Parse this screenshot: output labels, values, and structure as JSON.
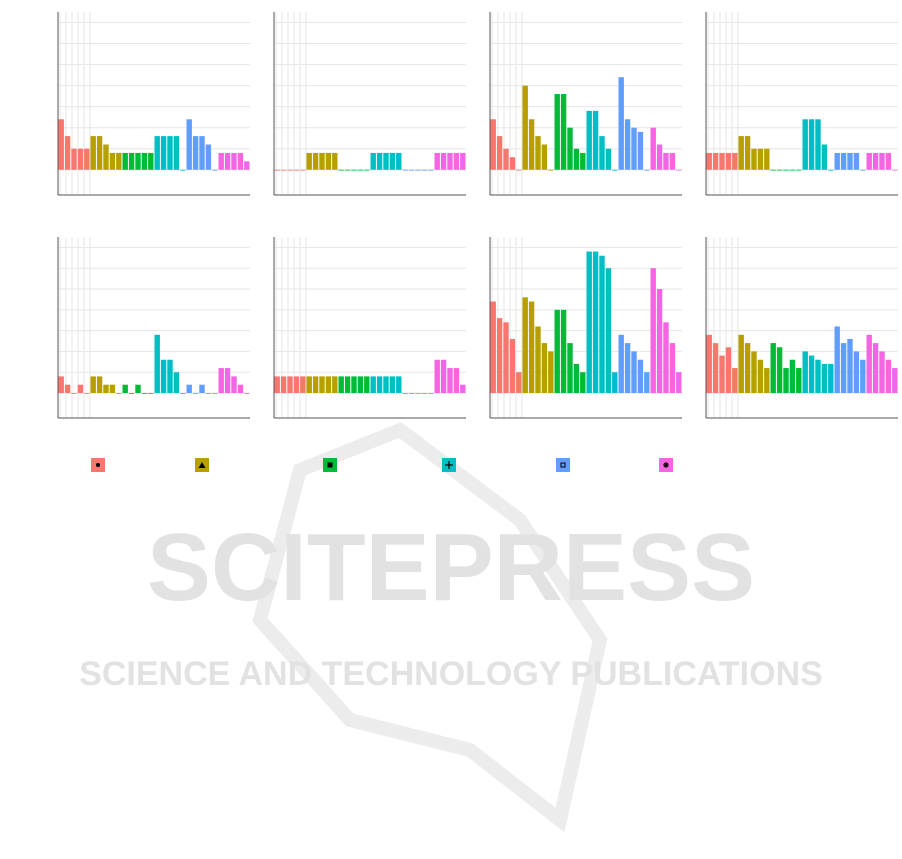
{
  "chart_data": [
    {
      "type": "bar",
      "ylim": [
        -1.2,
        7.5
      ],
      "yticks": [
        0,
        1,
        2,
        3,
        4,
        5,
        6,
        7
      ],
      "grid": true,
      "series": [
        {
          "color": "#f8766d",
          "values": [
            2.4,
            1.6,
            1,
            1,
            1
          ]
        },
        {
          "color": "#b79f00",
          "values": [
            1.6,
            1.6,
            1.2,
            0.8,
            0.8
          ]
        },
        {
          "color": "#00ba38",
          "values": [
            0.8,
            0.8,
            0.8,
            0.8,
            0.8
          ]
        },
        {
          "color": "#00bfc4",
          "values": [
            1.6,
            1.6,
            1.6,
            1.6,
            0
          ]
        },
        {
          "color": "#619cff",
          "values": [
            2.4,
            1.6,
            1.6,
            1.2,
            0
          ]
        },
        {
          "color": "#f564e3",
          "values": [
            0.8,
            0.8,
            0.8,
            0.8,
            0.4
          ]
        }
      ]
    },
    {
      "type": "bar",
      "ylim": [
        -1.2,
        7.5
      ],
      "yticks": [
        0,
        1,
        2,
        3,
        4,
        5,
        6,
        7
      ],
      "grid": true,
      "series": [
        {
          "color": "#f8766d",
          "values": [
            0,
            0,
            0,
            0,
            0
          ]
        },
        {
          "color": "#b79f00",
          "values": [
            0.8,
            0.8,
            0.8,
            0.8,
            0.8
          ]
        },
        {
          "color": "#00ba38",
          "values": [
            0,
            0,
            0,
            0,
            0
          ]
        },
        {
          "color": "#00bfc4",
          "values": [
            0.8,
            0.8,
            0.8,
            0.8,
            0.8
          ]
        },
        {
          "color": "#619cff",
          "values": [
            0,
            0,
            0,
            0,
            0
          ]
        },
        {
          "color": "#f564e3",
          "values": [
            0.8,
            0.8,
            0.8,
            0.8,
            0.8
          ]
        }
      ]
    },
    {
      "type": "bar",
      "ylim": [
        -1.2,
        7.5
      ],
      "yticks": [
        0,
        1,
        2,
        3,
        4,
        5,
        6,
        7
      ],
      "grid": true,
      "series": [
        {
          "color": "#f8766d",
          "values": [
            2.4,
            1.6,
            1,
            0.6,
            0
          ]
        },
        {
          "color": "#b79f00",
          "values": [
            4,
            2.4,
            1.6,
            1.2,
            0
          ]
        },
        {
          "color": "#00ba38",
          "values": [
            3.6,
            3.6,
            2,
            1,
            0.8
          ]
        },
        {
          "color": "#00bfc4",
          "values": [
            2.8,
            2.8,
            1.6,
            1,
            0
          ]
        },
        {
          "color": "#619cff",
          "values": [
            4.4,
            2.4,
            2,
            1.8,
            0
          ]
        },
        {
          "color": "#f564e3",
          "values": [
            2,
            1.2,
            0.8,
            0.8,
            0
          ]
        }
      ]
    },
    {
      "type": "bar",
      "ylim": [
        -1.2,
        7.5
      ],
      "yticks": [
        0,
        1,
        2,
        3,
        4,
        5,
        6,
        7
      ],
      "grid": true,
      "series": [
        {
          "color": "#f8766d",
          "values": [
            0.8,
            0.8,
            0.8,
            0.8,
            0.8
          ]
        },
        {
          "color": "#b79f00",
          "values": [
            1.6,
            1.6,
            1,
            1,
            1
          ]
        },
        {
          "color": "#00ba38",
          "values": [
            0,
            0,
            0,
            0,
            0
          ]
        },
        {
          "color": "#00bfc4",
          "values": [
            2.4,
            2.4,
            2.4,
            1.2,
            0
          ]
        },
        {
          "color": "#619cff",
          "values": [
            0.8,
            0.8,
            0.8,
            0.8,
            0
          ]
        },
        {
          "color": "#f564e3",
          "values": [
            0.8,
            0.8,
            0.8,
            0.8,
            0
          ]
        }
      ]
    },
    {
      "type": "bar",
      "ylim": [
        -1.2,
        7.5
      ],
      "yticks": [
        0,
        1,
        2,
        3,
        4,
        5,
        6,
        7
      ],
      "grid": true,
      "series": [
        {
          "color": "#f8766d",
          "values": [
            0.8,
            0.4,
            0,
            0.4,
            0
          ]
        },
        {
          "color": "#b79f00",
          "values": [
            0.8,
            0.8,
            0.4,
            0.4,
            0
          ]
        },
        {
          "color": "#00ba38",
          "values": [
            0.4,
            0,
            0.4,
            0,
            0
          ]
        },
        {
          "color": "#00bfc4",
          "values": [
            2.8,
            1.6,
            1.6,
            1,
            0
          ]
        },
        {
          "color": "#619cff",
          "values": [
            0.4,
            0,
            0.4,
            0,
            0
          ]
        },
        {
          "color": "#f564e3",
          "values": [
            1.2,
            1.2,
            0.8,
            0.4,
            0
          ]
        }
      ]
    },
    {
      "type": "bar",
      "ylim": [
        -1.2,
        7.5
      ],
      "yticks": [
        0,
        1,
        2,
        3,
        4,
        5,
        6,
        7
      ],
      "grid": true,
      "series": [
        {
          "color": "#f8766d",
          "values": [
            0.8,
            0.8,
            0.8,
            0.8,
            0.8
          ]
        },
        {
          "color": "#b79f00",
          "values": [
            0.8,
            0.8,
            0.8,
            0.8,
            0.8
          ]
        },
        {
          "color": "#00ba38",
          "values": [
            0.8,
            0.8,
            0.8,
            0.8,
            0.8
          ]
        },
        {
          "color": "#00bfc4",
          "values": [
            0.8,
            0.8,
            0.8,
            0.8,
            0.8
          ]
        },
        {
          "color": "#619cff",
          "values": [
            0,
            0,
            0,
            0,
            0
          ]
        },
        {
          "color": "#f564e3",
          "values": [
            1.6,
            1.6,
            1.2,
            1.2,
            0.4
          ]
        }
      ]
    },
    {
      "type": "bar",
      "ylim": [
        -1.2,
        7.5
      ],
      "yticks": [
        0,
        1,
        2,
        3,
        4,
        5,
        6,
        7
      ],
      "grid": true,
      "series": [
        {
          "color": "#f8766d",
          "values": [
            4.4,
            3.6,
            3.4,
            2.6,
            1
          ]
        },
        {
          "color": "#b79f00",
          "values": [
            4.6,
            4.4,
            3.2,
            2.4,
            2
          ]
        },
        {
          "color": "#00ba38",
          "values": [
            4,
            4,
            2.4,
            1.4,
            1
          ]
        },
        {
          "color": "#00bfc4",
          "values": [
            6.8,
            6.8,
            6.6,
            6,
            1
          ]
        },
        {
          "color": "#619cff",
          "values": [
            2.8,
            2.4,
            2,
            1.6,
            1
          ]
        },
        {
          "color": "#f564e3",
          "values": [
            6,
            5,
            3.4,
            2.4,
            1
          ]
        }
      ]
    },
    {
      "type": "bar",
      "ylim": [
        -1.2,
        7.5
      ],
      "yticks": [
        0,
        1,
        2,
        3,
        4,
        5,
        6,
        7
      ],
      "grid": true,
      "series": [
        {
          "color": "#f8766d",
          "values": [
            2.8,
            2.4,
            1.8,
            2.2,
            1.2
          ]
        },
        {
          "color": "#b79f00",
          "values": [
            2.8,
            2.4,
            2,
            1.6,
            1.2
          ]
        },
        {
          "color": "#00ba38",
          "values": [
            2.4,
            2.2,
            1.2,
            1.6,
            1.2
          ]
        },
        {
          "color": "#00bfc4",
          "values": [
            2,
            1.8,
            1.6,
            1.4,
            1.4
          ]
        },
        {
          "color": "#619cff",
          "values": [
            3.2,
            2.4,
            2.6,
            2,
            1.6
          ]
        },
        {
          "color": "#f564e3",
          "values": [
            2.8,
            2.4,
            2,
            1.6,
            1.2
          ]
        }
      ]
    }
  ],
  "legend_markers": [
    "circle",
    "triangle",
    "square",
    "plus",
    "square-open",
    "asterisk"
  ],
  "watermark": {
    "title": "SCITEPRESS",
    "subtitle": "SCIENCE AND TECHNOLOGY PUBLICATIONS"
  }
}
